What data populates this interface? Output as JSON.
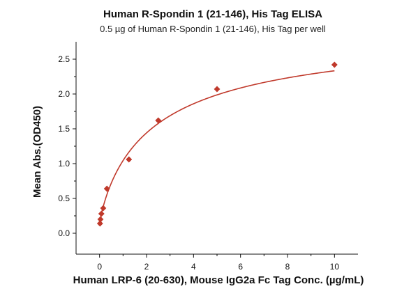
{
  "chart_data": {
    "type": "scatter",
    "title": "Human R-Spondin 1 (21-146), His Tag ELISA",
    "subtitle": "0.5 µg of Human R-Spondin 1 (21-146), His Tag per well",
    "xlabel": "Human LRP-6 (20-630), Mouse IgG2a Fc Tag Conc. (µg/mL)",
    "ylabel": "Mean Abs.(OD450)",
    "xlim": [
      -1,
      11
    ],
    "ylim": [
      -0.3,
      2.75
    ],
    "xticks": [
      0,
      2,
      4,
      6,
      8,
      10
    ],
    "yticks": [
      0.0,
      0.5,
      1.0,
      1.5,
      2.0,
      2.5
    ],
    "xtick_labels": [
      "0",
      "2",
      "4",
      "6",
      "8",
      "10"
    ],
    "ytick_labels": [
      "0.0",
      "0.5",
      "1.0",
      "1.5",
      "2.0",
      "2.5"
    ],
    "grid": false,
    "series": [
      {
        "x": [
          0.0195,
          0.039,
          0.078,
          0.156,
          0.3125,
          1.25,
          2.5,
          5,
          10
        ],
        "y": [
          0.14,
          0.2,
          0.28,
          0.36,
          0.64,
          1.06,
          1.62,
          2.07,
          2.42
        ],
        "marker": "diamond",
        "color": "#c0392b"
      }
    ],
    "fit": {
      "model": "4PL",
      "bottom": 0.13,
      "top": 3.0,
      "ec50": 2.45,
      "hill": 0.85,
      "color": "#c0392b"
    }
  }
}
